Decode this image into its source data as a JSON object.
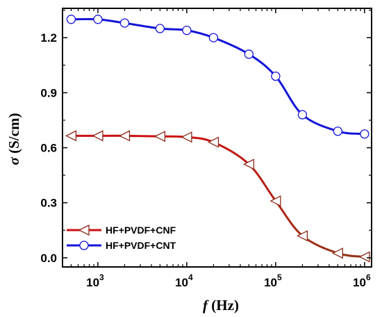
{
  "chart_data": {
    "type": "line",
    "title": "",
    "x_scale": "log",
    "xlim": [
      400,
      1200000
    ],
    "ylim": [
      -0.05,
      1.36
    ],
    "x_ticks": [
      {
        "value": 1000,
        "base": "10",
        "exp": "3"
      },
      {
        "value": 10000,
        "base": "10",
        "exp": "4"
      },
      {
        "value": 100000,
        "base": "10",
        "exp": "5"
      },
      {
        "value": 1000000,
        "base": "10",
        "exp": "6"
      }
    ],
    "y_ticks": [
      {
        "value": 0.0,
        "label": "0.0"
      },
      {
        "value": 0.3,
        "label": "0.3"
      },
      {
        "value": 0.6,
        "label": "0.6"
      },
      {
        "value": 0.9,
        "label": "0.9"
      },
      {
        "value": 1.2,
        "label": "1.2"
      }
    ],
    "xlabel": {
      "symbol": "f",
      "unit": " (Hz)"
    },
    "ylabel": {
      "symbol": "σ",
      "unit": " (S/cm)"
    },
    "legend_position": "bottom-left",
    "grid": false,
    "series": [
      {
        "name": "HF+PVDF+CNF",
        "line_color": "#cc1010",
        "line_color_end": "#8b3a1a",
        "marker": "triangle-left",
        "marker_color": "#8b2a1a",
        "x": [
          500,
          1000,
          2000,
          5000,
          10000,
          20000,
          50000,
          100000,
          200000,
          500000,
          1000000
        ],
        "y": [
          0.665,
          0.665,
          0.665,
          0.662,
          0.658,
          0.63,
          0.51,
          0.31,
          0.12,
          0.025,
          0.005
        ]
      },
      {
        "name": "HF+PVDF+CNT",
        "line_color": "#1414d8",
        "marker": "circle",
        "marker_color": "#1414d8",
        "x": [
          500,
          1000,
          2000,
          5000,
          10000,
          20000,
          50000,
          100000,
          200000,
          500000,
          1000000
        ],
        "y": [
          1.3,
          1.3,
          1.28,
          1.25,
          1.24,
          1.2,
          1.11,
          0.99,
          0.78,
          0.69,
          0.675
        ]
      }
    ]
  }
}
